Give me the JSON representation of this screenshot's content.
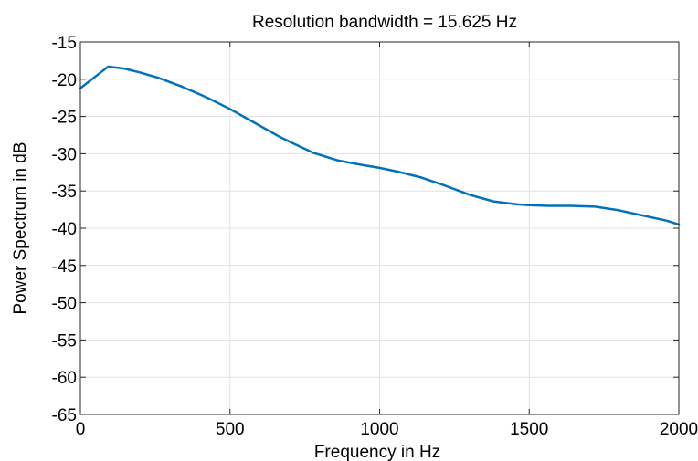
{
  "chart_data": {
    "type": "line",
    "title": "Resolution bandwidth = 15.625 Hz",
    "xlabel": "Frequency in Hz",
    "ylabel": "Power Spectrum in dB",
    "xlim": [
      0,
      2000
    ],
    "ylim": [
      -65,
      -15
    ],
    "xticks": [
      0,
      500,
      1000,
      1500,
      2000
    ],
    "yticks": [
      -15,
      -20,
      -25,
      -30,
      -35,
      -40,
      -45,
      -50,
      -55,
      -60,
      -65
    ],
    "grid": true,
    "line_color": "#0072BD",
    "grid_color": "#e1e1e1",
    "series": [
      {
        "x": [
          0,
          93,
          150,
          200,
          260,
          340,
          420,
          500,
          580,
          660,
          700,
          780,
          860,
          940,
          1000,
          1060,
          1140,
          1220,
          1300,
          1380,
          1460,
          1500,
          1560,
          1640,
          1720,
          1800,
          1880,
          1960,
          2000
        ],
        "values": [
          -21.2,
          -18.3,
          -18.6,
          -19.1,
          -19.8,
          -21.0,
          -22.4,
          -24.0,
          -25.8,
          -27.6,
          -28.4,
          -29.9,
          -30.9,
          -31.5,
          -31.9,
          -32.4,
          -33.2,
          -34.3,
          -35.5,
          -36.4,
          -36.8,
          -36.9,
          -37.0,
          -37.0,
          -37.1,
          -37.6,
          -38.3,
          -39.0,
          -39.5
        ]
      }
    ]
  }
}
